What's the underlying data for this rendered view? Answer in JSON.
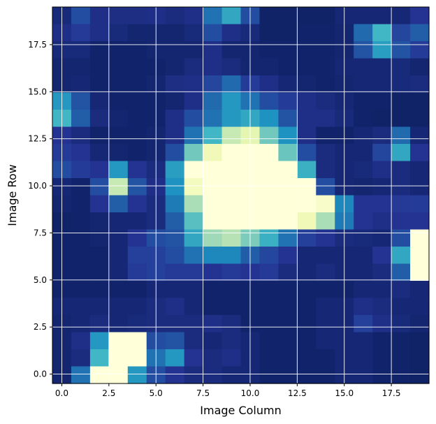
{
  "chart_data": {
    "type": "heatmap",
    "title": "",
    "xlabel": "Image Column",
    "ylabel": "Image Row",
    "xlim": [
      -0.5,
      19.5
    ],
    "ylim": [
      -0.5,
      19.5
    ],
    "x_ticks": [
      0.0,
      2.5,
      5.0,
      7.5,
      10.0,
      12.5,
      15.0,
      17.5
    ],
    "x_tick_labels": [
      "0.0",
      "2.5",
      "5.0",
      "7.5",
      "10.0",
      "12.5",
      "15.0",
      "17.5"
    ],
    "y_ticks": [
      0.0,
      2.5,
      5.0,
      7.5,
      10.0,
      12.5,
      15.0,
      17.5
    ],
    "y_tick_labels": [
      "0.0",
      "2.5",
      "5.0",
      "7.5",
      "10.0",
      "12.5",
      "15.0",
      "17.5"
    ],
    "grid": true,
    "colormap": "YlGnBu",
    "value_range": [
      0,
      1
    ],
    "rows_top_to_bottom": [
      [
        0.93,
        0.8,
        0.9,
        0.91,
        0.91,
        0.9,
        0.92,
        0.9,
        0.7,
        0.55,
        0.8,
        0.97,
        0.97,
        0.97,
        0.97,
        0.94,
        0.94,
        0.94,
        0.94,
        0.88
      ],
      [
        0.9,
        0.86,
        0.9,
        0.93,
        0.95,
        0.95,
        0.95,
        0.93,
        0.8,
        0.9,
        0.93,
        0.97,
        0.97,
        0.96,
        0.96,
        0.95,
        0.72,
        0.5,
        0.82,
        0.75
      ],
      [
        0.93,
        0.93,
        0.96,
        0.96,
        0.96,
        0.95,
        0.95,
        0.95,
        0.9,
        0.95,
        0.95,
        0.96,
        0.96,
        0.96,
        0.96,
        0.95,
        0.78,
        0.58,
        0.78,
        0.85
      ],
      [
        0.95,
        0.95,
        0.96,
        0.96,
        0.96,
        0.96,
        0.95,
        0.92,
        0.9,
        0.92,
        0.95,
        0.95,
        0.96,
        0.96,
        0.96,
        0.94,
        0.94,
        0.94,
        0.93,
        0.95
      ],
      [
        0.95,
        0.94,
        0.96,
        0.96,
        0.96,
        0.95,
        0.91,
        0.9,
        0.82,
        0.72,
        0.85,
        0.9,
        0.94,
        0.95,
        0.96,
        0.95,
        0.94,
        0.94,
        0.93,
        0.92
      ],
      [
        0.6,
        0.78,
        0.94,
        0.96,
        0.96,
        0.96,
        0.95,
        0.9,
        0.72,
        0.6,
        0.7,
        0.8,
        0.85,
        0.9,
        0.92,
        0.94,
        0.96,
        0.96,
        0.97,
        0.97
      ],
      [
        0.5,
        0.75,
        0.92,
        0.95,
        0.96,
        0.96,
        0.9,
        0.8,
        0.7,
        0.6,
        0.55,
        0.62,
        0.78,
        0.9,
        0.9,
        0.93,
        0.96,
        0.97,
        0.97,
        0.97
      ],
      [
        0.88,
        0.92,
        0.96,
        0.96,
        0.96,
        0.95,
        0.9,
        0.7,
        0.5,
        0.25,
        0.15,
        0.4,
        0.62,
        0.9,
        0.96,
        0.96,
        0.94,
        0.92,
        0.72,
        0.94
      ],
      [
        0.85,
        0.88,
        0.94,
        0.95,
        0.96,
        0.95,
        0.8,
        0.4,
        0.1,
        0.0,
        0.0,
        0.0,
        0.42,
        0.8,
        0.92,
        0.94,
        0.94,
        0.82,
        0.55,
        0.88
      ],
      [
        0.8,
        0.85,
        0.88,
        0.6,
        0.88,
        0.92,
        0.58,
        0.0,
        0.0,
        0.0,
        0.0,
        0.0,
        0.0,
        0.52,
        0.92,
        0.94,
        0.93,
        0.9,
        0.92,
        0.94
      ],
      [
        0.94,
        0.96,
        0.8,
        0.25,
        0.78,
        0.9,
        0.62,
        0.08,
        0.0,
        0.0,
        0.0,
        0.0,
        0.0,
        0.0,
        0.8,
        0.94,
        0.95,
        0.94,
        0.92,
        0.94
      ],
      [
        0.95,
        0.96,
        0.88,
        0.75,
        0.88,
        0.92,
        0.68,
        0.3,
        0.0,
        0.0,
        0.0,
        0.0,
        0.0,
        0.0,
        0.05,
        0.65,
        0.88,
        0.88,
        0.86,
        0.85
      ],
      [
        0.97,
        0.96,
        0.95,
        0.94,
        0.94,
        0.92,
        0.75,
        0.45,
        0.0,
        0.0,
        0.0,
        0.0,
        0.0,
        0.1,
        0.3,
        0.68,
        0.88,
        0.9,
        0.88,
        0.88
      ],
      [
        0.96,
        0.96,
        0.95,
        0.94,
        0.88,
        0.8,
        0.78,
        0.55,
        0.32,
        0.28,
        0.38,
        0.52,
        0.7,
        0.84,
        0.88,
        0.92,
        0.93,
        0.94,
        0.8,
        0.0
      ],
      [
        0.96,
        0.96,
        0.96,
        0.94,
        0.84,
        0.84,
        0.8,
        0.7,
        0.65,
        0.65,
        0.75,
        0.82,
        0.88,
        0.94,
        0.94,
        0.94,
        0.94,
        0.88,
        0.55,
        0.0
      ],
      [
        0.96,
        0.96,
        0.96,
        0.94,
        0.86,
        0.84,
        0.86,
        0.86,
        0.88,
        0.86,
        0.88,
        0.86,
        0.92,
        0.94,
        0.92,
        0.94,
        0.94,
        0.92,
        0.75,
        0.0
      ],
      [
        0.96,
        0.96,
        0.96,
        0.96,
        0.96,
        0.94,
        0.94,
        0.94,
        0.96,
        0.96,
        0.96,
        0.96,
        0.96,
        0.96,
        0.96,
        0.96,
        0.94,
        0.94,
        0.92,
        0.94
      ],
      [
        0.94,
        0.94,
        0.94,
        0.94,
        0.94,
        0.92,
        0.9,
        0.94,
        0.96,
        0.96,
        0.96,
        0.96,
        0.96,
        0.96,
        0.94,
        0.94,
        0.9,
        0.92,
        0.94,
        0.94
      ],
      [
        0.95,
        0.94,
        0.92,
        0.94,
        0.93,
        0.92,
        0.92,
        0.92,
        0.9,
        0.92,
        0.96,
        0.96,
        0.96,
        0.96,
        0.94,
        0.94,
        0.84,
        0.9,
        0.93,
        0.95
      ],
      [
        0.95,
        0.9,
        0.6,
        0.0,
        0.0,
        0.8,
        0.78,
        0.92,
        0.94,
        0.92,
        0.94,
        0.96,
        0.96,
        0.96,
        0.94,
        0.94,
        0.94,
        0.96,
        0.96,
        0.97
      ],
      [
        0.95,
        0.92,
        0.5,
        0.0,
        0.0,
        0.7,
        0.6,
        0.88,
        0.92,
        0.9,
        0.94,
        0.96,
        0.96,
        0.96,
        0.96,
        0.94,
        0.94,
        0.96,
        0.96,
        0.97
      ],
      [
        0.95,
        0.7,
        0.0,
        0.0,
        0.6,
        0.8,
        0.88,
        0.92,
        0.92,
        0.94,
        0.94,
        0.96,
        0.96,
        0.96,
        0.96,
        0.94,
        0.94,
        0.96,
        0.96,
        0.97
      ]
    ]
  }
}
